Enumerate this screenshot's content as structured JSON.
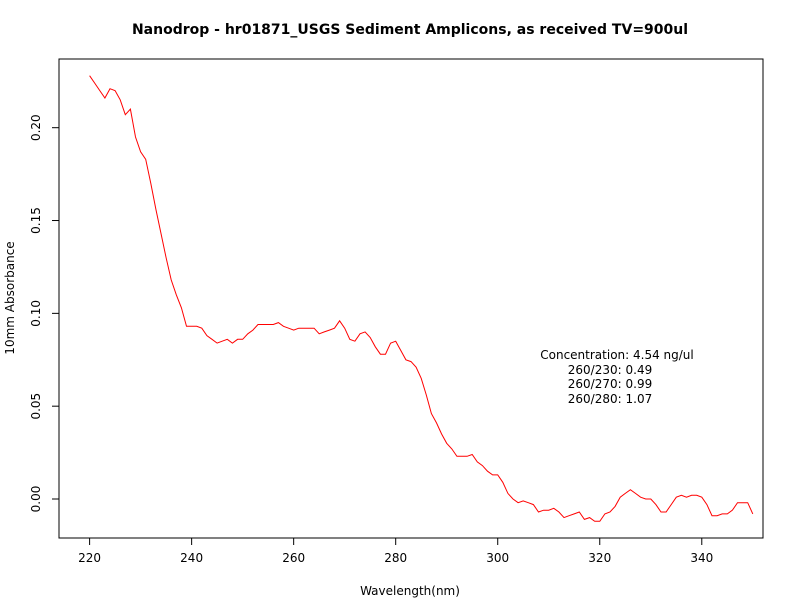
{
  "chart_data": {
    "type": "line",
    "title": "Nanodrop - hr01871_USGS Sediment  Amplicons, as received TV=900ul",
    "xlabel": "Wavelength(nm)",
    "ylabel": "10mm Absorbance",
    "xlim": [
      214,
      352
    ],
    "ylim": [
      -0.021,
      0.237
    ],
    "x_ticks": [
      220,
      240,
      260,
      280,
      300,
      320,
      340
    ],
    "y_ticks": [
      0.0,
      0.05,
      0.1,
      0.15,
      0.2
    ],
    "y_tick_labels": [
      "0.00",
      "0.05",
      "0.10",
      "0.15",
      "0.20"
    ],
    "grid": false,
    "series": [
      {
        "color": "#ff0000",
        "x": [
          220,
          221,
          222,
          223,
          224,
          225,
          226,
          227,
          228,
          229,
          230,
          231,
          232,
          233,
          234,
          235,
          236,
          237,
          238,
          239,
          240,
          241,
          242,
          243,
          244,
          245,
          246,
          247,
          248,
          249,
          250,
          251,
          252,
          253,
          254,
          255,
          256,
          257,
          258,
          259,
          260,
          261,
          262,
          263,
          264,
          265,
          266,
          267,
          268,
          269,
          270,
          271,
          272,
          273,
          274,
          275,
          276,
          277,
          278,
          279,
          280,
          281,
          282,
          283,
          284,
          285,
          286,
          287,
          288,
          289,
          290,
          291,
          292,
          293,
          294,
          295,
          296,
          297,
          298,
          299,
          300,
          301,
          302,
          303,
          304,
          305,
          306,
          307,
          308,
          309,
          310,
          311,
          312,
          313,
          314,
          315,
          316,
          317,
          318,
          319,
          320,
          321,
          322,
          323,
          324,
          325,
          326,
          327,
          328,
          329,
          330,
          331,
          332,
          333,
          334,
          335,
          336,
          337,
          338,
          339,
          340,
          341,
          342,
          343,
          344,
          345,
          346,
          347,
          348,
          349,
          350
        ],
        "y": [
          0.228,
          0.224,
          0.22,
          0.216,
          0.221,
          0.22,
          0.215,
          0.207,
          0.21,
          0.195,
          0.187,
          0.183,
          0.17,
          0.156,
          0.143,
          0.13,
          0.118,
          0.11,
          0.103,
          0.093,
          0.093,
          0.093,
          0.092,
          0.088,
          0.086,
          0.084,
          0.085,
          0.086,
          0.084,
          0.086,
          0.086,
          0.089,
          0.091,
          0.094,
          0.094,
          0.094,
          0.094,
          0.095,
          0.093,
          0.092,
          0.091,
          0.092,
          0.092,
          0.092,
          0.092,
          0.089,
          0.09,
          0.091,
          0.092,
          0.096,
          0.092,
          0.086,
          0.085,
          0.089,
          0.09,
          0.087,
          0.082,
          0.078,
          0.078,
          0.084,
          0.085,
          0.08,
          0.075,
          0.074,
          0.071,
          0.065,
          0.056,
          0.046,
          0.041,
          0.035,
          0.03,
          0.027,
          0.023,
          0.023,
          0.023,
          0.024,
          0.02,
          0.018,
          0.015,
          0.013,
          0.013,
          0.009,
          0.003,
          0.0,
          -0.002,
          -0.001,
          -0.002,
          -0.003,
          -0.007,
          -0.006,
          -0.006,
          -0.005,
          -0.007,
          -0.01,
          -0.009,
          -0.008,
          -0.007,
          -0.011,
          -0.01,
          -0.012,
          -0.012,
          -0.008,
          -0.007,
          -0.004,
          0.001,
          0.003,
          0.005,
          0.003,
          0.001,
          0.0,
          0.0,
          -0.003,
          -0.007,
          -0.007,
          -0.003,
          0.001,
          0.002,
          0.001,
          0.002,
          0.002,
          0.001,
          -0.003,
          -0.009,
          -0.009,
          -0.008,
          -0.008,
          -0.006,
          -0.002,
          -0.002,
          -0.002,
          -0.008
        ]
      }
    ],
    "annotations": [
      "Concentration: 4.54 ng/ul",
      "260/230: 0.49",
      "260/270: 0.99",
      "260/280: 1.07"
    ]
  }
}
